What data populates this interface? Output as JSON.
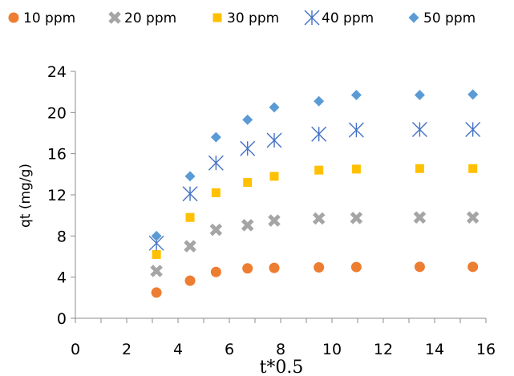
{
  "chart_data": {
    "type": "scatter",
    "title": "",
    "xlabel": "t*0.5",
    "ylabel": "qt (mg/g)",
    "xlim": [
      0,
      16
    ],
    "ylim": [
      0,
      24
    ],
    "xticks": [
      0,
      2,
      4,
      6,
      8,
      10,
      12,
      14,
      16
    ],
    "yticks": [
      0,
      4,
      8,
      12,
      16,
      20,
      24
    ],
    "grid": false,
    "legend_position": "top",
    "x": [
      3.16,
      4.47,
      5.48,
      6.71,
      7.75,
      9.49,
      10.95,
      13.42,
      15.49
    ],
    "series": [
      {
        "name": "10 ppm",
        "marker": "circle",
        "color": "#ED7D31",
        "values": [
          2.5,
          3.65,
          4.5,
          4.85,
          4.9,
          4.95,
          4.98,
          5.0,
          5.0
        ]
      },
      {
        "name": "20 ppm",
        "marker": "x-thick",
        "color": "#A5A5A5",
        "values": [
          4.6,
          7.0,
          8.6,
          9.05,
          9.5,
          9.7,
          9.75,
          9.8,
          9.8
        ]
      },
      {
        "name": "30 ppm",
        "marker": "square",
        "color": "#FFC000",
        "values": [
          6.2,
          9.8,
          12.2,
          13.2,
          13.8,
          14.4,
          14.5,
          14.55,
          14.55
        ]
      },
      {
        "name": "40 ppm",
        "marker": "asterisk",
        "color": "#4472C4",
        "values": [
          7.3,
          12.1,
          15.1,
          16.5,
          17.3,
          17.9,
          18.3,
          18.35,
          18.35
        ]
      },
      {
        "name": "50 ppm",
        "marker": "diamond",
        "color": "#5B9BD5",
        "values": [
          8.0,
          13.8,
          17.6,
          19.3,
          20.5,
          21.1,
          21.7,
          21.7,
          21.75
        ]
      }
    ]
  }
}
